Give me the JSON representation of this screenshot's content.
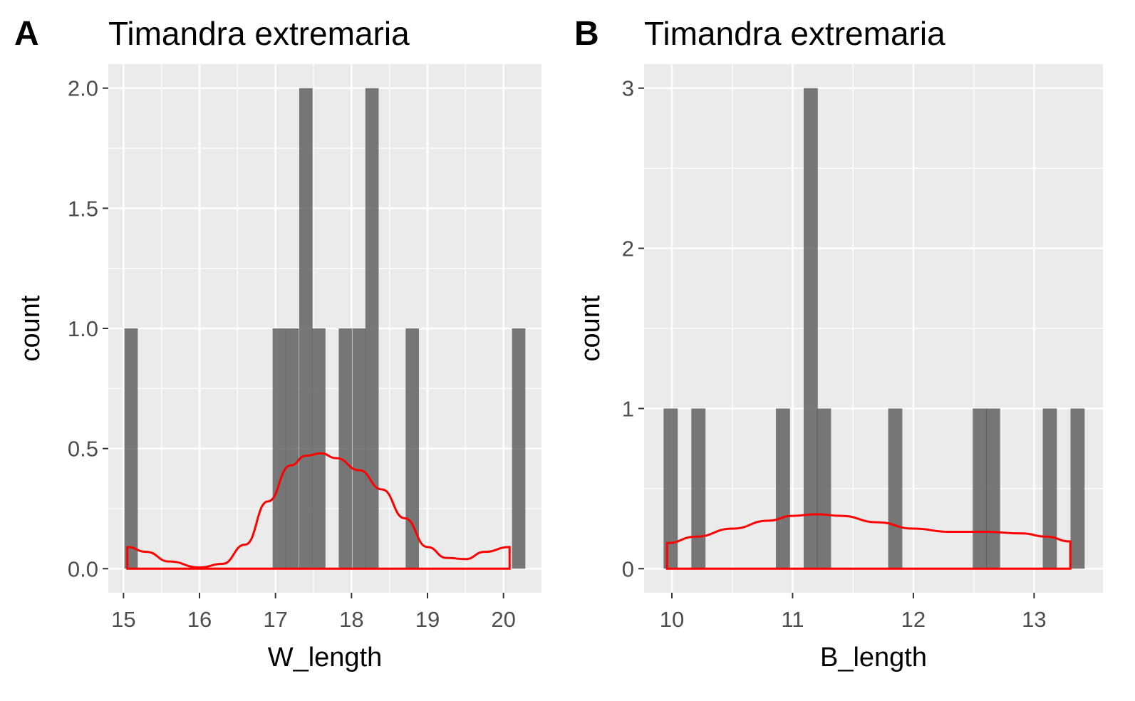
{
  "chart_data": [
    {
      "type": "bar",
      "tag": "A",
      "title": "Timandra extremaria",
      "xlabel": "W_length",
      "ylabel": "count",
      "xlim": [
        14.8,
        20.5
      ],
      "ylim": [
        -0.1,
        2.1
      ],
      "x_ticks": [
        "15",
        "16",
        "17",
        "18",
        "19",
        "20"
      ],
      "x_tick_values": [
        15,
        16,
        17,
        18,
        19,
        20
      ],
      "y_ticks": [
        "0.0",
        "0.5",
        "1.0",
        "1.5",
        "2.0"
      ],
      "y_tick_values": [
        0,
        0.5,
        1,
        1.5,
        2
      ],
      "bin_width": 0.175,
      "bins": [
        {
          "x": 15.1,
          "count": 1
        },
        {
          "x": 17.05,
          "count": 1
        },
        {
          "x": 17.22,
          "count": 1
        },
        {
          "x": 17.4,
          "count": 2
        },
        {
          "x": 17.57,
          "count": 1
        },
        {
          "x": 17.92,
          "count": 1
        },
        {
          "x": 18.1,
          "count": 1
        },
        {
          "x": 18.27,
          "count": 2
        },
        {
          "x": 18.8,
          "count": 1
        },
        {
          "x": 20.2,
          "count": 1
        }
      ],
      "density": {
        "color": "#ff0000",
        "x": [
          15.05,
          15.3,
          15.6,
          16.0,
          16.3,
          16.6,
          16.9,
          17.2,
          17.4,
          17.6,
          17.8,
          18.1,
          18.4,
          18.7,
          19.0,
          19.25,
          19.5,
          19.75,
          20.08
        ],
        "y": [
          0.09,
          0.07,
          0.03,
          0.005,
          0.02,
          0.1,
          0.28,
          0.43,
          0.47,
          0.48,
          0.46,
          0.41,
          0.33,
          0.21,
          0.09,
          0.045,
          0.04,
          0.07,
          0.09
        ]
      },
      "grid": true
    },
    {
      "type": "bar",
      "tag": "B",
      "title": "Timandra extremaria",
      "xlabel": "B_length",
      "ylabel": "count",
      "xlim": [
        9.77,
        13.57
      ],
      "ylim": [
        -0.15,
        3.15
      ],
      "x_ticks": [
        "10",
        "11",
        "12",
        "13"
      ],
      "x_tick_values": [
        10,
        11,
        12,
        13
      ],
      "y_ticks": [
        "0",
        "1",
        "2",
        "3"
      ],
      "y_tick_values": [
        0,
        1,
        2,
        3
      ],
      "bin_width": 0.117,
      "bins": [
        {
          "x": 9.99,
          "count": 1
        },
        {
          "x": 10.22,
          "count": 1
        },
        {
          "x": 10.92,
          "count": 1
        },
        {
          "x": 11.15,
          "count": 3
        },
        {
          "x": 11.26,
          "count": 1
        },
        {
          "x": 11.85,
          "count": 1
        },
        {
          "x": 12.55,
          "count": 1
        },
        {
          "x": 12.66,
          "count": 1
        },
        {
          "x": 13.13,
          "count": 1
        },
        {
          "x": 13.36,
          "count": 1
        }
      ],
      "density": {
        "color": "#ff0000",
        "x": [
          9.96,
          10.2,
          10.5,
          10.8,
          11.0,
          11.2,
          11.4,
          11.7,
          12.0,
          12.3,
          12.6,
          12.9,
          13.1,
          13.3
        ],
        "y": [
          0.16,
          0.2,
          0.25,
          0.3,
          0.33,
          0.34,
          0.33,
          0.29,
          0.25,
          0.23,
          0.23,
          0.22,
          0.2,
          0.17
        ]
      },
      "grid": true
    }
  ]
}
